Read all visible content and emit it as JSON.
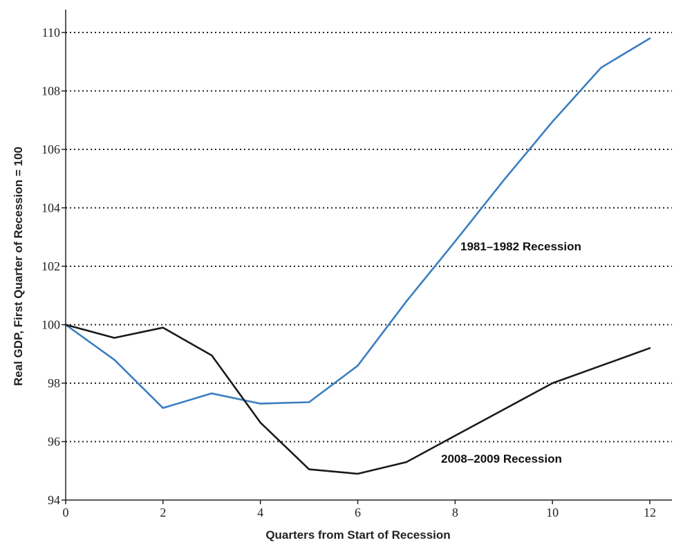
{
  "chart_data": {
    "type": "line",
    "xlabel": "Quarters from Start of Recession",
    "ylabel": "Real GDP, First Quarter of Recession = 100",
    "xlim": [
      0,
      12
    ],
    "ylim": [
      94,
      110
    ],
    "xticks": [
      0,
      2,
      4,
      6,
      8,
      10,
      12
    ],
    "yticks": [
      94,
      96,
      98,
      100,
      102,
      104,
      106,
      108,
      110
    ],
    "grid": "horizontal dotted lines",
    "series": [
      {
        "name": "1981–1982 Recession",
        "color": "#3a7dc0",
        "x": [
          0,
          1,
          2,
          3,
          4,
          5,
          6,
          7,
          8,
          9,
          10,
          11,
          12
        ],
        "values": [
          100,
          98.8,
          97.15,
          97.65,
          97.3,
          97.35,
          98.6,
          100.8,
          102.85,
          104.95,
          106.95,
          108.8,
          109.8
        ]
      },
      {
        "name": "2008–2009 Recession",
        "color": "#1a1a1a",
        "x": [
          0,
          1,
          2,
          3,
          4,
          5,
          6,
          7,
          8,
          9,
          10,
          11,
          12
        ],
        "values": [
          100,
          99.55,
          99.9,
          98.95,
          96.65,
          95.05,
          94.9,
          95.3,
          96.2,
          97.1,
          98.0,
          98.6,
          99.2
        ]
      }
    ]
  }
}
